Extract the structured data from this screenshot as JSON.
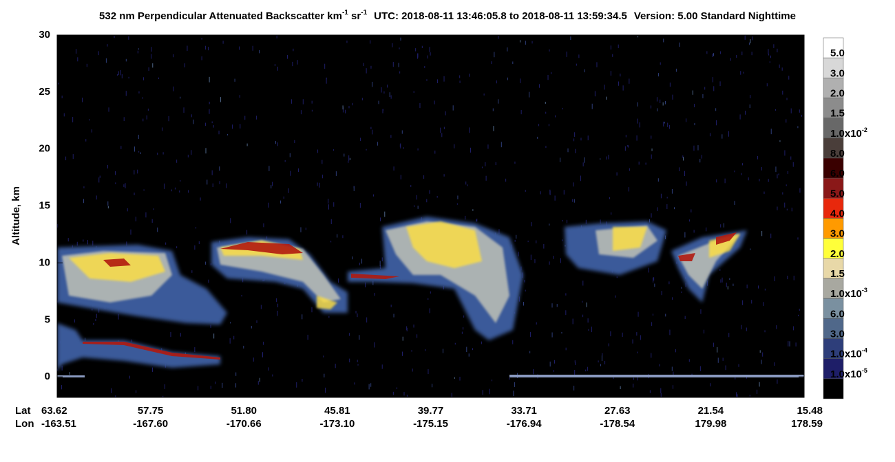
{
  "chart_data": {
    "type": "image",
    "title": [
      "532 nm Perpendicular Attenuated Backscatter km",
      "-1",
      " sr",
      "-1",
      "UTC: 2018-08-11 13:46:05.8 to 2018-08-11 13:59:34.5",
      "Version: 5.00 Standard Nighttime"
    ],
    "y_label": "Altitude, km",
    "ylim": [
      -1.8,
      30
    ],
    "yticks": [
      0,
      5,
      10,
      15,
      20,
      25,
      30
    ],
    "x_row_labels": [
      "Lat",
      "Lon"
    ],
    "lat": [
      "63.62",
      "57.75",
      "51.80",
      "45.81",
      "39.77",
      "33.71",
      "27.63",
      "21.54",
      "15.48"
    ],
    "lon": [
      "-163.51",
      "-167.60",
      "-170.66",
      "-173.10",
      "-175.15",
      "-176.94",
      "-178.54",
      "179.98",
      "178.59"
    ],
    "colorbar": {
      "colors": [
        "#ffffff",
        "#d8d8d8",
        "#b0b0b0",
        "#8c8c8c",
        "#686868",
        "#4a3e3a",
        "#3a0000",
        "#8a1818",
        "#e8280c",
        "#ff9a00",
        "#ffff3a",
        "#e8d8a8",
        "#a8a8a0",
        "#7a90a0",
        "#50688a",
        "#2e3e7a",
        "#1e1e68",
        "#000000"
      ],
      "labels": [
        {
          "text": "5.0"
        },
        {
          "text": "3.0"
        },
        {
          "text": "2.0"
        },
        {
          "text": "1.5"
        },
        {
          "text": "1.0x10",
          "sup": "-2"
        },
        {
          "text": "8.0"
        },
        {
          "text": "6.0"
        },
        {
          "text": "5.0"
        },
        {
          "text": "4.0"
        },
        {
          "text": "3.0"
        },
        {
          "text": "2.0"
        },
        {
          "text": "1.5"
        },
        {
          "text": "1.0x10",
          "sup": "-3"
        },
        {
          "text": "6.0"
        },
        {
          "text": "3.0"
        },
        {
          "text": "1.0x10",
          "sup": "-4"
        },
        {
          "text": "1.0x10",
          "sup": "-5"
        }
      ]
    }
  }
}
